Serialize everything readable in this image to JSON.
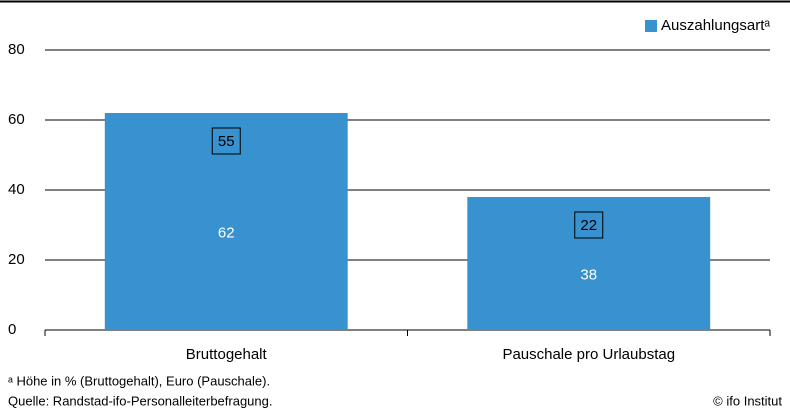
{
  "chart_data": {
    "type": "bar",
    "categories": [
      "Bruttogehalt",
      "Pauschale pro Urlaubstag"
    ],
    "series": [
      {
        "name": "Auszahlungsartᵃ",
        "color": "#3792cf",
        "values": [
          62,
          38
        ]
      }
    ],
    "box_labels": [
      55,
      22
    ],
    "ylim": [
      0,
      80
    ],
    "yticks": [
      0,
      20,
      40,
      60,
      80
    ],
    "grid": true,
    "legend": "top-right",
    "footnote": "ᵃ Höhe in % (Bruttogehalt), Euro (Pauschale).",
    "source": "Quelle: Randstad-ifo-Personalleiterbefragung.",
    "credit": "© ifo Institut"
  }
}
